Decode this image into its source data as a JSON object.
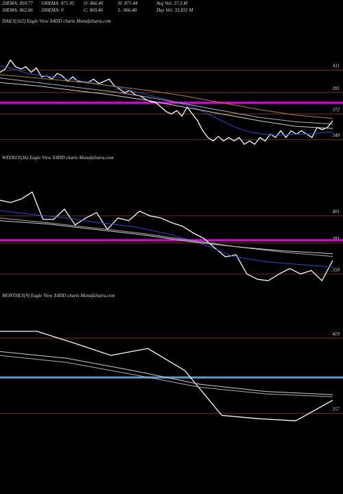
{
  "header": [
    [
      "20EMA: 859.77",
      "100EMA: 871.95",
      "O: 866.40",
      "H: 871.44",
      "Avg Vol: 37.3 M"
    ],
    [
      "30EMA: 862.06",
      "200EMA: 0",
      "C: 869.46",
      "L: 866.40",
      "Day Vol: 33.831 M"
    ]
  ],
  "chart_data": [
    {
      "type": "line",
      "title": "DAILY(162) Eagle  View  X4DD charts MunafaSutra.com",
      "ylim": [
        336,
        449
      ],
      "yticks": [
        411,
        391,
        372,
        349
      ],
      "grid_color": "#8b4513",
      "hlines": [
        {
          "value": 382,
          "color": "#e000e0"
        }
      ],
      "series": [
        {
          "color": "#ffffff",
          "values": [
            409,
            412,
            420,
            414,
            412,
            414,
            409,
            413,
            405,
            406,
            403,
            408,
            406,
            401,
            405,
            401,
            401,
            400,
            403,
            399,
            401,
            403,
            397,
            394,
            391,
            393,
            389,
            388,
            385,
            383,
            382,
            378,
            374,
            372,
            375,
            370,
            378,
            372,
            366,
            357,
            351,
            348,
            352,
            348,
            351,
            348,
            351,
            345,
            348,
            345,
            351,
            348,
            354,
            351,
            357,
            351,
            357,
            354,
            357,
            354,
            351,
            360,
            358,
            360,
            366
          ]
        },
        {
          "color": "#1f4fd8",
          "values": [
            415,
            412,
            408,
            406,
            405,
            403,
            401,
            399,
            397,
            394,
            391,
            388,
            385,
            381,
            378,
            372,
            366,
            360,
            356,
            354,
            353,
            354,
            354,
            355,
            356
          ]
        },
        {
          "color": "#b0b0b0",
          "values": [
            404,
            400,
            396,
            392,
            387,
            381,
            375,
            369,
            365,
            363
          ]
        },
        {
          "color": "#d0d0d0",
          "values": [
            400,
            397,
            393,
            389,
            384,
            378,
            372,
            366,
            361,
            359
          ]
        },
        {
          "color": "#b8860b",
          "values": [
            407,
            404,
            401,
            397,
            393,
            388,
            382,
            376,
            371,
            368
          ]
        }
      ]
    },
    {
      "type": "line",
      "title": "WEEKLY(36) Eagle  View  X4DD charts MunafaSutra.com",
      "ylim": [
        350,
        439
      ],
      "yticks": [
        401,
        381,
        358
      ],
      "grid_color": "#8b4513",
      "hlines": [
        {
          "value": 383,
          "color": "#e000e0"
        }
      ],
      "series": [
        {
          "color": "#ffffff",
          "values": [
            412.6,
            411,
            413.6,
            418.7,
            398.5,
            398.5,
            406,
            394.4,
            399.5,
            403.5,
            391,
            399.5,
            397.5,
            404.5,
            401,
            399.5,
            396,
            393.4,
            388.4,
            384.3,
            377.3,
            370.7,
            372.2,
            358,
            354,
            353,
            358,
            362,
            358,
            360.6,
            353,
            368
          ]
        },
        {
          "color": "#1f4fd8",
          "values": [
            405,
            402,
            399.5,
            396,
            393,
            388,
            381,
            371,
            367,
            365,
            363
          ]
        },
        {
          "color": "#b0b0b0",
          "values": [
            399.5,
            396,
            392,
            388,
            383,
            378,
            374,
            371
          ]
        },
        {
          "color": "#d0d0d0",
          "values": [
            397.5,
            395,
            391,
            387,
            382,
            378,
            375,
            373
          ]
        }
      ]
    },
    {
      "type": "line",
      "title": "MONTHLY(9) Eagle  View  X4DD charts MunafaSutra.com",
      "ylim": [
        347,
        449
      ],
      "yticks": [
        419,
        357
      ],
      "grid_color": "#8b4513",
      "hlines": [
        {
          "value": 386.6,
          "color": "#5b9bd5"
        }
      ],
      "series": [
        {
          "color": "#ffffff",
          "values": [
            424.7,
            424.7,
            415,
            404.8,
            410.5,
            392.3,
            355.3,
            352.5,
            350.8,
            367.8
          ]
        },
        {
          "color": "#d0d0d0",
          "values": [
            408,
            402.5,
            392.3,
            381,
            375,
            372.4
          ]
        },
        {
          "color": "#b0b0b0",
          "values": [
            404.8,
            399,
            389,
            378.5,
            373,
            370.7
          ]
        }
      ]
    }
  ]
}
